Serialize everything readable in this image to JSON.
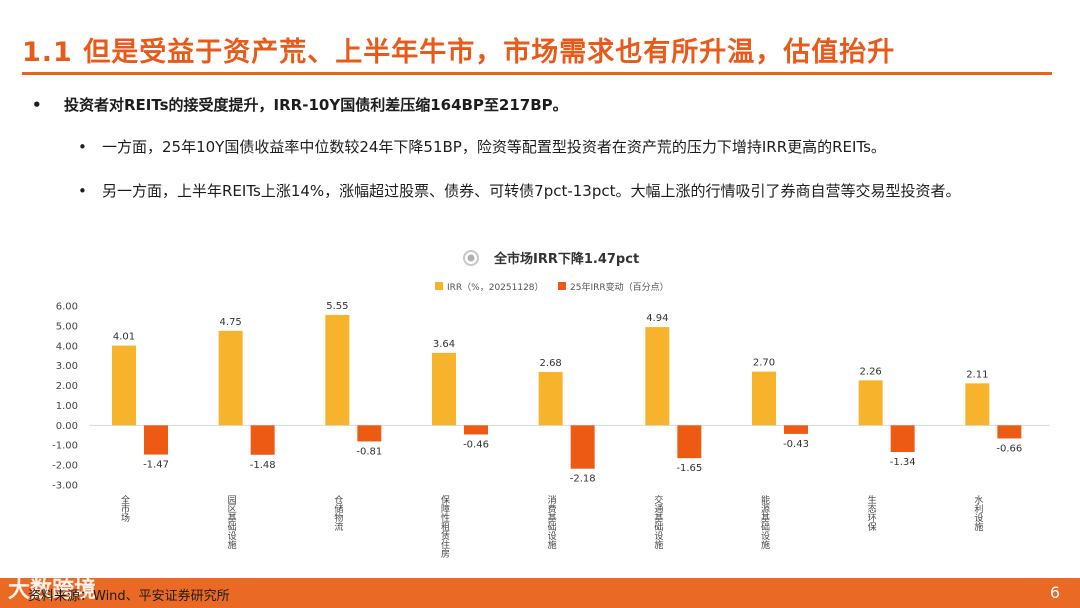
{
  "slide": {
    "title": "1.1 但是受益于资产荒、上半年牛市，市场需求也有所升温，估值抬升",
    "bullets": [
      "投资者对REITs的接受度提升，IRR-10Y国债利差压缩164BP至217BP。",
      "一方面，25年10Y国债收益率中位数较24年下降51BP，险资等配置型投资者在资产荒的压力下增持IRR更高的REITs。",
      "另一方面，上半年REITs上涨14%，涨幅超过股票、债券、可转债7pct-13pct。大幅上涨的行情吸引了券商自营等交易型投资者。"
    ],
    "bullet_marker": "•",
    "footer_source": "资料来源：Wind、平安证券研究所",
    "watermark": "大数跨境",
    "page_number": "6"
  },
  "colors": {
    "accent": "#e8631e",
    "irr_bar": "#f7b32b",
    "change_bar": "#ec5a14"
  },
  "chart_data": {
    "type": "bar",
    "title": "全市场IRR下降1.47pct",
    "categories": [
      "全市场",
      "园区基础设施",
      "仓储物流",
      "保障性租赁住房",
      "消费基础设施",
      "交通基础设施",
      "能源基础设施",
      "生态环保",
      "水利设施"
    ],
    "series": [
      {
        "name": "IRR（%，20251128）",
        "values": [
          4.01,
          4.75,
          5.55,
          3.64,
          2.68,
          4.94,
          2.7,
          2.26,
          2.11
        ]
      },
      {
        "name": "25年IRR变动（百分点）",
        "values": [
          -1.47,
          -1.48,
          -0.81,
          -0.46,
          -2.18,
          -1.65,
          -0.43,
          -1.34,
          -0.66
        ]
      }
    ],
    "yticks": [
      "6.00",
      "5.00",
      "4.00",
      "3.00",
      "2.00",
      "1.00",
      "0.00",
      "-1.00",
      "-2.00",
      "-3.00"
    ],
    "ylim": [
      -3,
      6
    ],
    "legend_position": "top",
    "grid": false
  }
}
